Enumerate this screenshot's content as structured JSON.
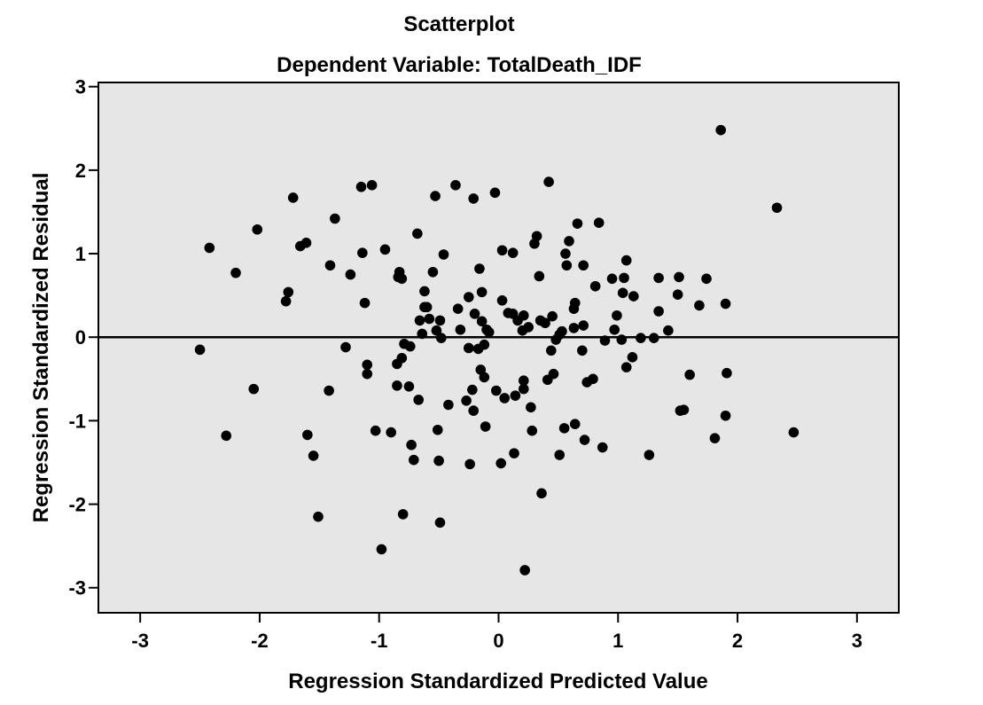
{
  "chart_data": {
    "type": "scatter",
    "title": "Scatterplot",
    "subtitle": "Dependent Variable: TotalDeath_IDF",
    "xlabel": "Regression Standardized Predicted Value",
    "ylabel": "Regression Standardized Residual",
    "xlim": [
      -3.35,
      3.35
    ],
    "ylim": [
      -3.3,
      3.05
    ],
    "xticks": [
      -3,
      -2,
      -1,
      0,
      1,
      2,
      3
    ],
    "yticks": [
      -3,
      -2,
      -1,
      0,
      1,
      2,
      3
    ],
    "reference_line_y": 0,
    "grid": false,
    "plot_background": "#e6e6e6",
    "point_color": "#000000",
    "points": [
      [
        -2.5,
        -0.15
      ],
      [
        -2.42,
        1.07
      ],
      [
        -2.28,
        -1.18
      ],
      [
        -2.2,
        0.77
      ],
      [
        -2.05,
        -0.62
      ],
      [
        -2.02,
        1.29
      ],
      [
        -1.78,
        0.43
      ],
      [
        -1.76,
        0.54
      ],
      [
        -1.72,
        1.67
      ],
      [
        -1.66,
        1.09
      ],
      [
        -1.61,
        1.13
      ],
      [
        -1.6,
        -1.17
      ],
      [
        -1.55,
        -1.42
      ],
      [
        -1.51,
        -2.15
      ],
      [
        -1.42,
        -0.64
      ],
      [
        -1.41,
        0.86
      ],
      [
        -1.37,
        1.42
      ],
      [
        -1.28,
        -0.12
      ],
      [
        -1.24,
        0.75
      ],
      [
        -1.15,
        1.8
      ],
      [
        -1.14,
        1.01
      ],
      [
        -1.12,
        0.41
      ],
      [
        -1.1,
        -0.44
      ],
      [
        -1.1,
        -0.33
      ],
      [
        -1.06,
        1.82
      ],
      [
        -1.03,
        -1.12
      ],
      [
        -0.98,
        -2.54
      ],
      [
        -0.95,
        1.05
      ],
      [
        -0.9,
        -1.14
      ],
      [
        -0.85,
        -0.58
      ],
      [
        -0.85,
        -0.32
      ],
      [
        -0.84,
        0.72
      ],
      [
        -0.83,
        0.78
      ],
      [
        -0.81,
        0.7
      ],
      [
        -0.81,
        -0.25
      ],
      [
        -0.8,
        -2.12
      ],
      [
        -0.79,
        -0.08
      ],
      [
        -0.75,
        -0.59
      ],
      [
        -0.74,
        -0.11
      ],
      [
        -0.73,
        -1.29
      ],
      [
        -0.71,
        -1.47
      ],
      [
        -0.68,
        1.24
      ],
      [
        -0.67,
        -0.75
      ],
      [
        -0.66,
        0.2
      ],
      [
        -0.64,
        0.04
      ],
      [
        -0.62,
        0.36
      ],
      [
        -0.62,
        0.55
      ],
      [
        -0.6,
        0.36
      ],
      [
        -0.58,
        0.22
      ],
      [
        -0.55,
        0.78
      ],
      [
        -0.53,
        1.69
      ],
      [
        -0.52,
        0.08
      ],
      [
        -0.51,
        -1.11
      ],
      [
        -0.5,
        -1.48
      ],
      [
        -0.49,
        0.2
      ],
      [
        -0.49,
        -2.22
      ],
      [
        -0.48,
        -0.01
      ],
      [
        -0.46,
        0.99
      ],
      [
        -0.42,
        -0.81
      ],
      [
        -0.36,
        1.82
      ],
      [
        -0.34,
        0.34
      ],
      [
        -0.32,
        0.09
      ],
      [
        -0.27,
        -0.76
      ],
      [
        -0.25,
        0.48
      ],
      [
        -0.25,
        -0.13
      ],
      [
        -0.24,
        -1.52
      ],
      [
        -0.22,
        -0.63
      ],
      [
        -0.21,
        -0.88
      ],
      [
        -0.21,
        1.66
      ],
      [
        -0.2,
        0.28
      ],
      [
        -0.17,
        -0.14
      ],
      [
        -0.16,
        0.82
      ],
      [
        -0.15,
        -0.39
      ],
      [
        -0.14,
        0.19
      ],
      [
        -0.14,
        0.54
      ],
      [
        -0.12,
        -0.48
      ],
      [
        -0.12,
        -0.09
      ],
      [
        -0.11,
        -1.07
      ],
      [
        -0.1,
        0.09
      ],
      [
        -0.08,
        0.06
      ],
      [
        -0.03,
        1.73
      ],
      [
        -0.02,
        -0.64
      ],
      [
        0.02,
        -1.51
      ],
      [
        0.03,
        0.44
      ],
      [
        0.03,
        1.04
      ],
      [
        0.05,
        -0.73
      ],
      [
        0.08,
        0.29
      ],
      [
        0.12,
        0.28
      ],
      [
        0.12,
        1.01
      ],
      [
        0.13,
        -1.39
      ],
      [
        0.14,
        -0.7
      ],
      [
        0.16,
        0.2
      ],
      [
        0.2,
        0.08
      ],
      [
        0.21,
        -0.52
      ],
      [
        0.21,
        -0.62
      ],
      [
        0.21,
        0.26
      ],
      [
        0.22,
        -2.79
      ],
      [
        0.25,
        0.12
      ],
      [
        0.27,
        -0.84
      ],
      [
        0.28,
        -1.12
      ],
      [
        0.3,
        1.12
      ],
      [
        0.32,
        1.21
      ],
      [
        0.34,
        0.73
      ],
      [
        0.35,
        0.2
      ],
      [
        0.36,
        -1.87
      ],
      [
        0.39,
        0.17
      ],
      [
        0.41,
        -0.51
      ],
      [
        0.42,
        1.86
      ],
      [
        0.44,
        -0.16
      ],
      [
        0.45,
        0.25
      ],
      [
        0.46,
        -0.44
      ],
      [
        0.48,
        -0.03
      ],
      [
        0.51,
        0.03
      ],
      [
        0.51,
        -1.41
      ],
      [
        0.53,
        0.07
      ],
      [
        0.55,
        -1.09
      ],
      [
        0.56,
        1.0
      ],
      [
        0.57,
        0.86
      ],
      [
        0.59,
        1.15
      ],
      [
        0.63,
        0.11
      ],
      [
        0.63,
        0.34
      ],
      [
        0.64,
        0.41
      ],
      [
        0.64,
        -1.04
      ],
      [
        0.66,
        1.36
      ],
      [
        0.7,
        -0.16
      ],
      [
        0.71,
        0.86
      ],
      [
        0.71,
        0.14
      ],
      [
        0.72,
        -1.23
      ],
      [
        0.74,
        -0.54
      ],
      [
        0.79,
        -0.5
      ],
      [
        0.81,
        0.61
      ],
      [
        0.84,
        1.37
      ],
      [
        0.87,
        -1.32
      ],
      [
        0.89,
        -0.04
      ],
      [
        0.95,
        0.7
      ],
      [
        0.97,
        0.09
      ],
      [
        0.99,
        0.26
      ],
      [
        1.03,
        -0.03
      ],
      [
        1.04,
        0.53
      ],
      [
        1.05,
        0.71
      ],
      [
        1.07,
        0.92
      ],
      [
        1.07,
        -0.36
      ],
      [
        1.12,
        -0.24
      ],
      [
        1.13,
        0.49
      ],
      [
        1.19,
        -0.01
      ],
      [
        1.26,
        -1.41
      ],
      [
        1.3,
        -0.01
      ],
      [
        1.34,
        0.71
      ],
      [
        1.34,
        0.31
      ],
      [
        1.42,
        0.08
      ],
      [
        1.5,
        0.51
      ],
      [
        1.51,
        0.72
      ],
      [
        1.52,
        -0.88
      ],
      [
        1.55,
        -0.87
      ],
      [
        1.6,
        -0.45
      ],
      [
        1.68,
        0.38
      ],
      [
        1.74,
        0.7
      ],
      [
        1.81,
        -1.21
      ],
      [
        1.86,
        2.48
      ],
      [
        1.9,
        0.4
      ],
      [
        1.9,
        -0.94
      ],
      [
        1.91,
        -0.43
      ],
      [
        2.33,
        1.55
      ],
      [
        2.47,
        -1.14
      ]
    ]
  }
}
